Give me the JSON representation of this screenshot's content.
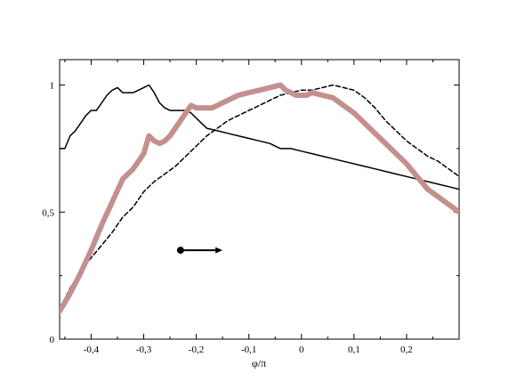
{
  "chart_data": {
    "type": "line",
    "title": "",
    "xlabel": "φ/π",
    "ylabel": "",
    "xlim": [
      -0.46,
      0.3
    ],
    "ylim": [
      0,
      1.1
    ],
    "grid": false,
    "x_ticks": [
      -0.4,
      -0.3,
      -0.2,
      -0.1,
      0,
      0.1,
      0.2
    ],
    "x_tick_labels": [
      "-0,4",
      "-0,3",
      "-0,2",
      "-0,1",
      "0",
      "0,1",
      "0,2"
    ],
    "y_ticks": [
      0,
      0.5,
      1
    ],
    "y_tick_labels": [
      "0",
      "0,5",
      "1"
    ],
    "annotation": {
      "type": "arrow",
      "from": [
        -0.23,
        0.35
      ],
      "to": [
        -0.15,
        0.35
      ]
    },
    "series": [
      {
        "style": "solid-thin",
        "color": "#000000",
        "x": [
          -0.46,
          -0.45,
          -0.44,
          -0.43,
          -0.42,
          -0.41,
          -0.4,
          -0.39,
          -0.38,
          -0.37,
          -0.36,
          -0.35,
          -0.34,
          -0.33,
          -0.32,
          -0.31,
          -0.3,
          -0.29,
          -0.28,
          -0.27,
          -0.26,
          -0.25,
          -0.24,
          -0.23,
          -0.22,
          -0.21,
          -0.2,
          -0.19,
          -0.18,
          -0.16,
          -0.14,
          -0.12,
          -0.1,
          -0.08,
          -0.06,
          -0.04,
          -0.02,
          0,
          0.02,
          0.04,
          0.06,
          0.08,
          0.1,
          0.12,
          0.14,
          0.16,
          0.18,
          0.2,
          0.22,
          0.24,
          0.26,
          0.28,
          0.3
        ],
        "y": [
          0.75,
          0.75,
          0.8,
          0.82,
          0.85,
          0.88,
          0.9,
          0.9,
          0.93,
          0.96,
          0.98,
          0.99,
          0.97,
          0.97,
          0.97,
          0.98,
          0.99,
          1.0,
          0.97,
          0.93,
          0.91,
          0.9,
          0.9,
          0.9,
          0.9,
          0.89,
          0.87,
          0.85,
          0.83,
          0.82,
          0.81,
          0.8,
          0.79,
          0.78,
          0.77,
          0.75,
          0.75,
          0.74,
          0.73,
          0.72,
          0.71,
          0.7,
          0.69,
          0.68,
          0.67,
          0.66,
          0.65,
          0.64,
          0.63,
          0.62,
          0.61,
          0.6,
          0.59
        ]
      },
      {
        "style": "dashed",
        "color": "#000000",
        "x": [
          -0.46,
          -0.44,
          -0.42,
          -0.4,
          -0.38,
          -0.36,
          -0.34,
          -0.32,
          -0.3,
          -0.28,
          -0.26,
          -0.24,
          -0.22,
          -0.2,
          -0.18,
          -0.16,
          -0.14,
          -0.12,
          -0.1,
          -0.08,
          -0.06,
          -0.04,
          -0.02,
          0,
          0.02,
          0.04,
          0.06,
          0.08,
          0.1,
          0.12,
          0.14,
          0.16,
          0.18,
          0.2,
          0.22,
          0.24,
          0.26,
          0.28,
          0.3
        ],
        "y": [
          0.12,
          0.2,
          0.27,
          0.32,
          0.37,
          0.42,
          0.48,
          0.52,
          0.58,
          0.62,
          0.65,
          0.68,
          0.72,
          0.76,
          0.8,
          0.83,
          0.86,
          0.88,
          0.9,
          0.92,
          0.94,
          0.96,
          0.97,
          0.98,
          0.98,
          0.99,
          1.0,
          0.99,
          0.98,
          0.95,
          0.91,
          0.86,
          0.82,
          0.78,
          0.75,
          0.72,
          0.7,
          0.67,
          0.64
        ]
      },
      {
        "style": "solid-thick",
        "color": "#c4908e",
        "x": [
          -0.46,
          -0.44,
          -0.42,
          -0.4,
          -0.38,
          -0.36,
          -0.34,
          -0.33,
          -0.32,
          -0.31,
          -0.3,
          -0.29,
          -0.28,
          -0.27,
          -0.26,
          -0.25,
          -0.24,
          -0.23,
          -0.22,
          -0.21,
          -0.2,
          -0.19,
          -0.18,
          -0.17,
          -0.16,
          -0.15,
          -0.14,
          -0.12,
          -0.1,
          -0.08,
          -0.06,
          -0.04,
          -0.03,
          -0.02,
          -0.01,
          0,
          0.01,
          0.02,
          0.04,
          0.06,
          0.08,
          0.1,
          0.12,
          0.14,
          0.16,
          0.18,
          0.2,
          0.22,
          0.24,
          0.26,
          0.28,
          0.3
        ],
        "y": [
          0.11,
          0.18,
          0.26,
          0.35,
          0.45,
          0.54,
          0.63,
          0.65,
          0.67,
          0.7,
          0.73,
          0.8,
          0.78,
          0.77,
          0.78,
          0.8,
          0.83,
          0.86,
          0.89,
          0.92,
          0.91,
          0.91,
          0.91,
          0.91,
          0.92,
          0.93,
          0.94,
          0.96,
          0.97,
          0.98,
          0.99,
          1.0,
          0.98,
          0.97,
          0.96,
          0.96,
          0.96,
          0.97,
          0.96,
          0.95,
          0.92,
          0.89,
          0.85,
          0.81,
          0.77,
          0.73,
          0.69,
          0.64,
          0.59,
          0.56,
          0.53,
          0.5
        ]
      }
    ]
  }
}
